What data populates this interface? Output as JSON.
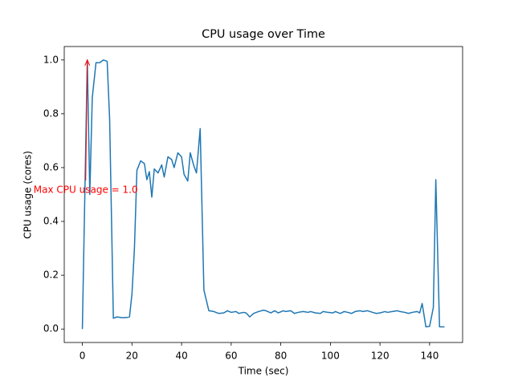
{
  "chart_data": {
    "type": "line",
    "title": "CPU usage over Time",
    "x_label": "Time (sec)",
    "y_label": "CPU usage (cores)",
    "x": [
      0,
      2,
      3,
      4,
      5.5,
      7,
      8.5,
      10,
      11,
      12.5,
      14,
      16,
      18,
      19,
      20,
      21,
      22,
      23.5,
      25,
      26,
      27,
      28,
      29,
      30.5,
      32,
      33,
      34.5,
      36,
      37,
      38.5,
      40,
      41,
      42.5,
      43.5,
      45,
      46,
      47.5,
      49,
      51,
      53,
      55,
      57,
      58.5,
      60,
      62,
      63,
      65,
      66,
      67.5,
      69,
      71,
      73,
      74,
      76,
      77.5,
      79,
      81,
      82,
      84,
      85.5,
      87,
      89,
      91,
      92,
      94,
      96,
      97,
      99,
      101,
      102,
      104,
      105.5,
      107,
      108.5,
      110,
      112,
      113,
      115,
      117,
      118.5,
      120,
      122,
      123,
      125,
      127,
      128,
      130,
      131.5,
      133,
      135,
      136,
      137,
      138.5,
      140,
      141.5,
      142.5,
      144,
      146
    ],
    "series": [
      {
        "name": "CPU usage",
        "color": "#1f77b4",
        "values": [
          0,
          1.0,
          0.5,
          0.86,
          0.99,
          0.99,
          1.0,
          0.995,
          0.78,
          0.04,
          0.045,
          0.042,
          0.043,
          0.045,
          0.13,
          0.3,
          0.59,
          0.625,
          0.615,
          0.555,
          0.585,
          0.49,
          0.595,
          0.58,
          0.61,
          0.565,
          0.64,
          0.63,
          0.6,
          0.655,
          0.64,
          0.575,
          0.55,
          0.655,
          0.605,
          0.58,
          0.745,
          0.145,
          0.068,
          0.065,
          0.058,
          0.06,
          0.068,
          0.062,
          0.065,
          0.058,
          0.062,
          0.06,
          0.045,
          0.058,
          0.065,
          0.07,
          0.068,
          0.06,
          0.068,
          0.06,
          0.068,
          0.065,
          0.068,
          0.058,
          0.062,
          0.065,
          0.062,
          0.065,
          0.06,
          0.058,
          0.065,
          0.062,
          0.06,
          0.065,
          0.058,
          0.065,
          0.062,
          0.058,
          0.065,
          0.068,
          0.065,
          0.068,
          0.062,
          0.058,
          0.06,
          0.065,
          0.062,
          0.065,
          0.068,
          0.065,
          0.062,
          0.058,
          0.062,
          0.065,
          0.06,
          0.095,
          0.008,
          0.01,
          0.08,
          0.555,
          0.008,
          0.008
        ]
      }
    ],
    "xlim": [
      -7.3,
      153.3
    ],
    "ylim": [
      -0.05,
      1.05
    ],
    "xticks": [
      0,
      20,
      40,
      60,
      80,
      100,
      120,
      140
    ],
    "yticks": [
      {
        "value": 0,
        "label": "0.0"
      },
      0.2,
      0.4,
      0.6,
      0.8,
      {
        "value": 1,
        "label": "1.0"
      }
    ],
    "annotation": {
      "text": "Max CPU usage = 1.0",
      "color": "red"
    }
  }
}
